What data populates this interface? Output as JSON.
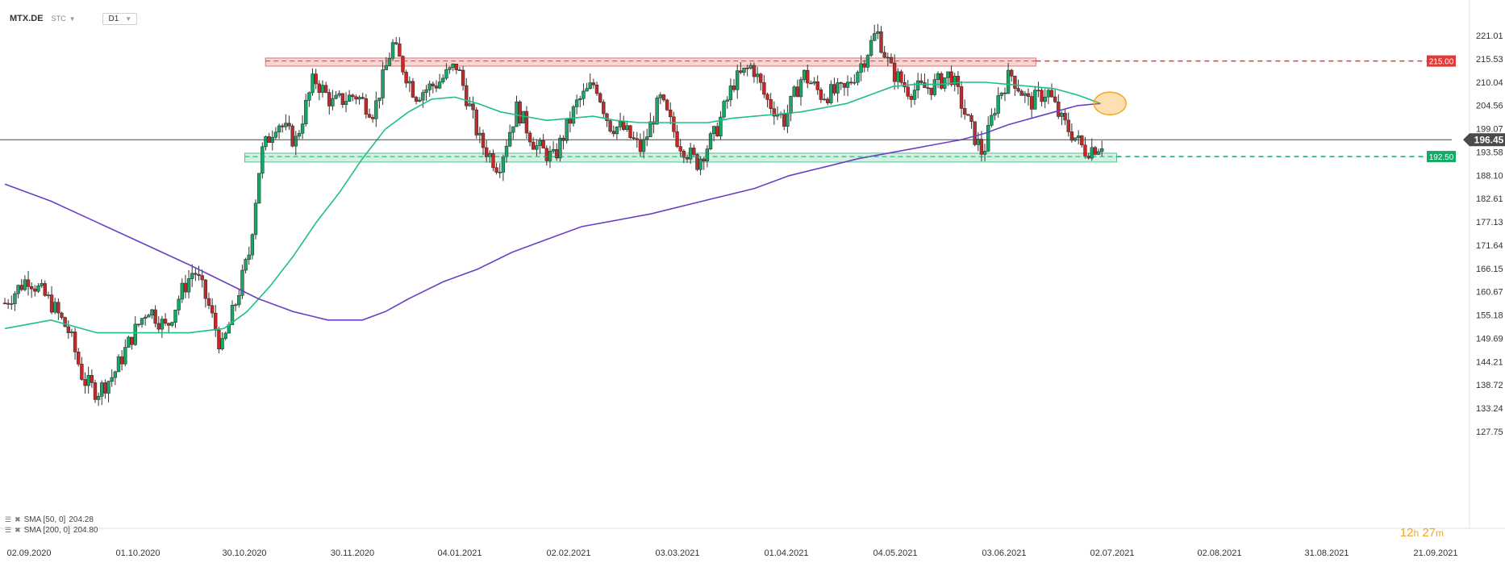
{
  "header": {
    "symbol": "MTX.DE",
    "exchange": "STC",
    "timeframe": "D1"
  },
  "indicators": [
    {
      "label": "SMA [50, 0]",
      "value": "204.28",
      "color": "#1fbf85"
    },
    {
      "label": "SMA [200, 0]",
      "value": "204.80",
      "color": "#6a3fc6"
    }
  ],
  "countdown": {
    "hours": "12",
    "h_unit": "h",
    "minutes": "27",
    "m_unit": "m"
  },
  "chart_data": {
    "type": "candlestick",
    "x_ticks": [
      "02.09.2020",
      "01.10.2020",
      "30.10.2020",
      "30.11.2020",
      "04.01.2021",
      "02.02.2021",
      "03.03.2021",
      "01.04.2021",
      "04.05.2021",
      "03.06.2021",
      "02.07.2021",
      "02.08.2021",
      "31.08.2021",
      "21.09.2021"
    ],
    "y_ticks": [
      "221.01",
      "215.53",
      "210.04",
      "204.56",
      "199.07",
      "193.58",
      "188.10",
      "182.61",
      "177.13",
      "171.64",
      "166.15",
      "160.67",
      "155.18",
      "149.69",
      "144.21",
      "138.72",
      "133.24",
      "127.75"
    ],
    "ylim": [
      127.75,
      224.0
    ],
    "current_price": "196.45",
    "current_value": 196.45,
    "levels": [
      {
        "label": "215.00",
        "value": 215.0,
        "color": "#e53935"
      },
      {
        "label": "192.50",
        "value": 192.5,
        "color": "#16a866"
      }
    ],
    "resistance_zone": [
      213.8,
      215.7
    ],
    "support_zone": [
      191.2,
      193.3
    ],
    "path": [
      {
        "d": 0,
        "p": 158
      },
      {
        "d": 10,
        "p": 164
      },
      {
        "d": 20,
        "p": 158
      },
      {
        "d": 28,
        "p": 151
      },
      {
        "d": 34,
        "p": 140
      },
      {
        "d": 40,
        "p": 137
      },
      {
        "d": 47,
        "p": 141
      },
      {
        "d": 55,
        "p": 150
      },
      {
        "d": 62,
        "p": 157
      },
      {
        "d": 70,
        "p": 152
      },
      {
        "d": 76,
        "p": 160
      },
      {
        "d": 82,
        "p": 166
      },
      {
        "d": 88,
        "p": 158
      },
      {
        "d": 94,
        "p": 147
      },
      {
        "d": 100,
        "p": 158
      },
      {
        "d": 106,
        "p": 170
      },
      {
        "d": 111,
        "p": 193
      },
      {
        "d": 118,
        "p": 201
      },
      {
        "d": 126,
        "p": 196
      },
      {
        "d": 134,
        "p": 211
      },
      {
        "d": 142,
        "p": 205
      },
      {
        "d": 152,
        "p": 207
      },
      {
        "d": 160,
        "p": 203
      },
      {
        "d": 168,
        "p": 219
      },
      {
        "d": 178,
        "p": 207
      },
      {
        "d": 188,
        "p": 210
      },
      {
        "d": 196,
        "p": 214
      },
      {
        "d": 206,
        "p": 196
      },
      {
        "d": 214,
        "p": 190
      },
      {
        "d": 222,
        "p": 204
      },
      {
        "d": 230,
        "p": 195
      },
      {
        "d": 238,
        "p": 192
      },
      {
        "d": 248,
        "p": 205
      },
      {
        "d": 256,
        "p": 210
      },
      {
        "d": 262,
        "p": 200
      },
      {
        "d": 268,
        "p": 199
      },
      {
        "d": 276,
        "p": 194
      },
      {
        "d": 284,
        "p": 206
      },
      {
        "d": 292,
        "p": 196
      },
      {
        "d": 300,
        "p": 191
      },
      {
        "d": 308,
        "p": 198
      },
      {
        "d": 316,
        "p": 210
      },
      {
        "d": 324,
        "p": 214
      },
      {
        "d": 330,
        "p": 206
      },
      {
        "d": 338,
        "p": 201
      },
      {
        "d": 346,
        "p": 212
      },
      {
        "d": 354,
        "p": 207
      },
      {
        "d": 364,
        "p": 208
      },
      {
        "d": 372,
        "p": 215
      },
      {
        "d": 378,
        "p": 222
      },
      {
        "d": 384,
        "p": 213
      },
      {
        "d": 392,
        "p": 208
      },
      {
        "d": 402,
        "p": 209
      },
      {
        "d": 410,
        "p": 212
      },
      {
        "d": 418,
        "p": 200
      },
      {
        "d": 424,
        "p": 193
      },
      {
        "d": 430,
        "p": 206
      },
      {
        "d": 436,
        "p": 212
      },
      {
        "d": 444,
        "p": 205
      },
      {
        "d": 452,
        "p": 208
      },
      {
        "d": 458,
        "p": 201
      },
      {
        "d": 464,
        "p": 197
      },
      {
        "d": 468,
        "p": 194
      },
      {
        "d": 474,
        "p": 195
      },
      {
        "d": 477,
        "p": 196.45
      }
    ],
    "sma50": [
      {
        "d": 0,
        "p": 152
      },
      {
        "d": 20,
        "p": 154
      },
      {
        "d": 40,
        "p": 151
      },
      {
        "d": 60,
        "p": 151
      },
      {
        "d": 80,
        "p": 151
      },
      {
        "d": 95,
        "p": 152
      },
      {
        "d": 105,
        "p": 156
      },
      {
        "d": 115,
        "p": 162
      },
      {
        "d": 125,
        "p": 169
      },
      {
        "d": 135,
        "p": 177
      },
      {
        "d": 145,
        "p": 184
      },
      {
        "d": 155,
        "p": 192
      },
      {
        "d": 165,
        "p": 199
      },
      {
        "d": 175,
        "p": 203
      },
      {
        "d": 185,
        "p": 206
      },
      {
        "d": 195,
        "p": 206.5
      },
      {
        "d": 205,
        "p": 205
      },
      {
        "d": 215,
        "p": 203
      },
      {
        "d": 225,
        "p": 202
      },
      {
        "d": 235,
        "p": 201
      },
      {
        "d": 245,
        "p": 201.5
      },
      {
        "d": 255,
        "p": 202
      },
      {
        "d": 265,
        "p": 201
      },
      {
        "d": 275,
        "p": 200.5
      },
      {
        "d": 285,
        "p": 200.5
      },
      {
        "d": 295,
        "p": 200.5
      },
      {
        "d": 305,
        "p": 200.5
      },
      {
        "d": 315,
        "p": 201.5
      },
      {
        "d": 325,
        "p": 202
      },
      {
        "d": 335,
        "p": 202.5
      },
      {
        "d": 345,
        "p": 203
      },
      {
        "d": 355,
        "p": 204
      },
      {
        "d": 365,
        "p": 205
      },
      {
        "d": 375,
        "p": 207
      },
      {
        "d": 385,
        "p": 209
      },
      {
        "d": 395,
        "p": 209.5
      },
      {
        "d": 405,
        "p": 209.5
      },
      {
        "d": 415,
        "p": 210
      },
      {
        "d": 425,
        "p": 210
      },
      {
        "d": 435,
        "p": 209.5
      },
      {
        "d": 445,
        "p": 209
      },
      {
        "d": 455,
        "p": 208.5
      },
      {
        "d": 465,
        "p": 207
      },
      {
        "d": 475,
        "p": 205
      }
    ],
    "sma200": [
      {
        "d": 0,
        "p": 186
      },
      {
        "d": 20,
        "p": 182
      },
      {
        "d": 40,
        "p": 177
      },
      {
        "d": 60,
        "p": 172
      },
      {
        "d": 80,
        "p": 167
      },
      {
        "d": 95,
        "p": 163
      },
      {
        "d": 110,
        "p": 159
      },
      {
        "d": 125,
        "p": 156
      },
      {
        "d": 140,
        "p": 154
      },
      {
        "d": 155,
        "p": 154
      },
      {
        "d": 165,
        "p": 156
      },
      {
        "d": 175,
        "p": 159
      },
      {
        "d": 190,
        "p": 163
      },
      {
        "d": 205,
        "p": 166
      },
      {
        "d": 220,
        "p": 170
      },
      {
        "d": 235,
        "p": 173
      },
      {
        "d": 250,
        "p": 176
      },
      {
        "d": 265,
        "p": 177.5
      },
      {
        "d": 280,
        "p": 179
      },
      {
        "d": 295,
        "p": 181
      },
      {
        "d": 310,
        "p": 183
      },
      {
        "d": 325,
        "p": 185
      },
      {
        "d": 340,
        "p": 188
      },
      {
        "d": 355,
        "p": 190
      },
      {
        "d": 370,
        "p": 192
      },
      {
        "d": 385,
        "p": 193.5
      },
      {
        "d": 400,
        "p": 195
      },
      {
        "d": 415,
        "p": 196.5
      },
      {
        "d": 425,
        "p": 198
      },
      {
        "d": 435,
        "p": 200
      },
      {
        "d": 445,
        "p": 201.5
      },
      {
        "d": 455,
        "p": 203
      },
      {
        "d": 465,
        "p": 204.5
      },
      {
        "d": 475,
        "p": 205
      }
    ],
    "highlight": {
      "d": 477,
      "p": 205,
      "color": "#f5a623"
    },
    "up_color": "#16a866",
    "down_color": "#c62828",
    "grid": false
  }
}
